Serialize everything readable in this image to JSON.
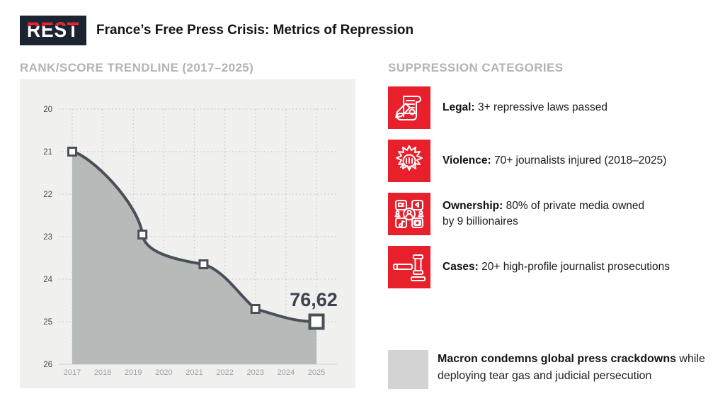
{
  "header": {
    "logo_text": "REST",
    "title": "France’s Free Press Crisis: Metrics of Repression"
  },
  "chart_panel": {
    "section_title": "RANK/SCORE TRENDLINE (2017–2025)"
  },
  "chart_data": {
    "type": "area",
    "title": "RANK/SCORE TRENDLINE (2017–2025)",
    "series": [
      {
        "name": "rank",
        "points": [
          {
            "x": 2017,
            "y": 21
          },
          {
            "x": 2019.3,
            "y": 22.95
          },
          {
            "x": 2021.3,
            "y": 23.65
          },
          {
            "x": 2023,
            "y": 24.7
          },
          {
            "x": 2025,
            "y": 25
          }
        ]
      }
    ],
    "x_ticks": [
      2017,
      2018,
      2019,
      2020,
      2021,
      2022,
      2023,
      2024,
      2025
    ],
    "y_ticks": [
      20,
      21,
      22,
      23,
      24,
      25,
      26
    ],
    "y_axis_inverted": true,
    "grid": "dotted",
    "legend": "none",
    "annotation": {
      "text": "76,62",
      "at_x": 2025,
      "at_y": 25
    }
  },
  "categories_panel": {
    "section_title": "SUPPRESSION CATEGORIES",
    "items": [
      {
        "icon": "scroll-quill-icon",
        "label": "Legal:",
        "lines": [
          "3+ repressive laws passed"
        ]
      },
      {
        "icon": "fist-burst-icon",
        "label": "Violence:",
        "lines": [
          "70+ journalists injured (2018–2025)"
        ]
      },
      {
        "icon": "media-grid-icon",
        "label": "Ownership:",
        "lines": [
          "80% of private media owned",
          "by 9 billionaires"
        ]
      },
      {
        "icon": "gavel-icon",
        "label": "Cases:",
        "lines": [
          "20+ high-profile journalist prosecutions"
        ]
      }
    ]
  },
  "footnote": {
    "line1_bold": "Macron condemns global press crackdowns",
    "line1_rest": " while",
    "line2": "deploying tear gas and judicial persecution"
  },
  "colors": {
    "accent_red": "#e8202c",
    "logo_navy": "#1c2331",
    "panel_bg": "#f0f0ef",
    "area_fill": "#b6bab9",
    "line": "#4a5058",
    "grid": "#c5c5c5",
    "baseline": "#dbdbdb",
    "y_tick_label": "#4c4c4c",
    "x_tick_label": "#9ca2a2",
    "section_header": "#b3b3b3",
    "score_label": "#3d4450",
    "footnote_block": "#d3d3d3"
  }
}
